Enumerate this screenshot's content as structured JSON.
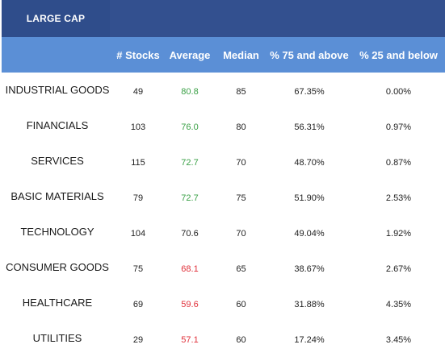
{
  "title": "LARGE CAP",
  "headers": [
    "# Stocks",
    "Average",
    "Median",
    "% 75 and above",
    "% 25 and below"
  ],
  "colors": {
    "title_bg": "#2f4d8b",
    "header_bg": "#5b8fd6",
    "average_high": "#3aa046",
    "average_low": "#e0303a",
    "average_neutral": "#222222"
  },
  "rows": [
    {
      "sector": "INDUSTRIAL GOODS",
      "stocks": "49",
      "average": "80.8",
      "avg_tone": "high",
      "median": "85",
      "above75": "67.35%",
      "below25": "0.00%"
    },
    {
      "sector": "FINANCIALS",
      "stocks": "103",
      "average": "76.0",
      "avg_tone": "high",
      "median": "80",
      "above75": "56.31%",
      "below25": "0.97%"
    },
    {
      "sector": "SERVICES",
      "stocks": "115",
      "average": "72.7",
      "avg_tone": "high",
      "median": "70",
      "above75": "48.70%",
      "below25": "0.87%"
    },
    {
      "sector": "BASIC MATERIALS",
      "stocks": "79",
      "average": "72.7",
      "avg_tone": "high",
      "median": "75",
      "above75": "51.90%",
      "below25": "2.53%"
    },
    {
      "sector": "TECHNOLOGY",
      "stocks": "104",
      "average": "70.6",
      "avg_tone": "neutral",
      "median": "70",
      "above75": "49.04%",
      "below25": "1.92%"
    },
    {
      "sector": "CONSUMER GOODS",
      "stocks": "75",
      "average": "68.1",
      "avg_tone": "low",
      "median": "65",
      "above75": "38.67%",
      "below25": "2.67%"
    },
    {
      "sector": "HEALTHCARE",
      "stocks": "69",
      "average": "59.6",
      "avg_tone": "low",
      "median": "60",
      "above75": "31.88%",
      "below25": "4.35%"
    },
    {
      "sector": "UTILITIES",
      "stocks": "29",
      "average": "57.1",
      "avg_tone": "low",
      "median": "60",
      "above75": "17.24%",
      "below25": "3.45%"
    }
  ]
}
